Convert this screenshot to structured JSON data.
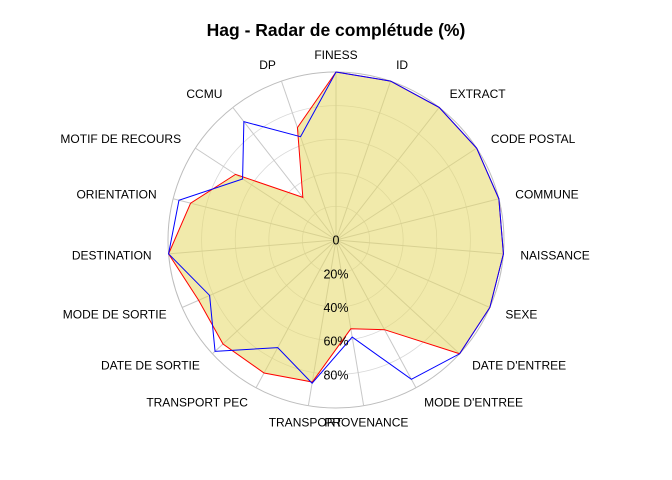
{
  "chart_data": {
    "type": "radar",
    "title": "Hag - Radar de complétude (%)",
    "axes": [
      "FINESS",
      "ID",
      "EXTRACT",
      "CODE POSTAL",
      "COMMUNE",
      "NAISSANCE",
      "SEXE",
      "DATE D'ENTREE",
      "MODE D'ENTREE",
      "PROVENANCE",
      "TRANSPORT",
      "TRANSPORT PEC",
      "DATE DE SORTIE",
      "MODE DE SORTIE",
      "DESTINATION",
      "ORIENTATION",
      "MOTIF DE RECOURS",
      "CCMU",
      "DP"
    ],
    "ring_ticks": [
      0,
      20,
      40,
      60,
      80
    ],
    "ring_labels": [
      "0",
      "20%",
      "40%",
      "60%",
      "80%"
    ],
    "rlim": [
      -40,
      100
    ],
    "series": [
      {
        "color": "#ff0000",
        "fill": "#e6d966",
        "fill_opacity": 0.55,
        "values": [
          100,
          100,
          100,
          100,
          100,
          100,
          100,
          100,
          45,
          35,
          80,
          86,
          88,
          85,
          100,
          85,
          60,
          5,
          59
        ]
      },
      {
        "color": "#0000ff",
        "values": [
          100,
          100,
          100,
          100,
          100,
          100,
          100,
          100,
          92,
          42,
          81,
          62,
          97,
          75,
          100,
          95,
          53,
          85,
          51
        ]
      }
    ],
    "grid": true
  }
}
